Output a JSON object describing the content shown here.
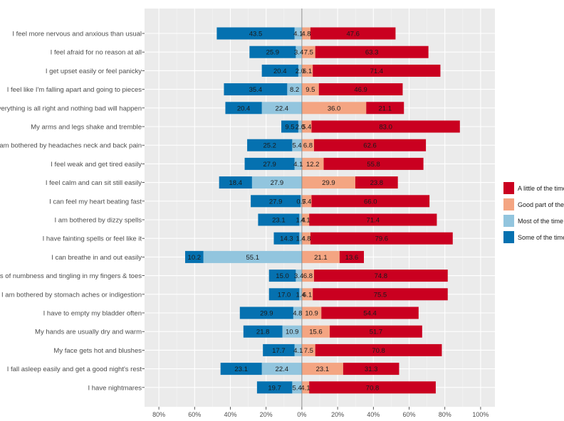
{
  "chart_data": {
    "type": "bar",
    "orientation": "horizontal",
    "stacking": "diverging",
    "title": "",
    "xlabel": "",
    "ylabel": "",
    "xlim": [
      -88,
      108
    ],
    "x_ticks": [
      -80,
      -60,
      -40,
      -20,
      0,
      20,
      40,
      60,
      80,
      100
    ],
    "x_tick_labels": [
      "80%",
      "60%",
      "40%",
      "20%",
      "0%",
      "20%",
      "40%",
      "60%",
      "80%",
      "100%"
    ],
    "grid": true,
    "legend_position": "right",
    "legend": [
      "A little of the time",
      "Good part of the time",
      "Most of the time",
      "Some of the time"
    ],
    "colors": {
      "A little of the time": "#ca0020",
      "Good part of the time": "#f4a582",
      "Most of the time": "#92c5de",
      "Some of the time": "#0571b0"
    },
    "categories": [
      "I feel more nervous and anxious than usual",
      "I feel afraid for no reason at all",
      "I get upset easily or feel panicky",
      "I feel like I'm falling apart and going to pieces",
      "I feel that everything is all right and nothing bad will happen",
      "My arms and legs shake and tremble",
      "I am bothered by headaches neck and back pain",
      "I feel weak and get tired easily",
      "I feel calm and can sit still easily",
      "I can feel my heart beating fast",
      "I am bothered by dizzy spells",
      "I have fainting spells or feel like it",
      "I can breathe in and out easily",
      "I get feelings of numbness and tingling in my fingers & toes",
      "I am bothered by stomach aches or indigestion",
      "I have to empty my bladder often",
      "My hands are usually dry and warm",
      "My face gets hot and blushes",
      "I fall asleep easily and get a good night's rest",
      "I have nightmares"
    ],
    "series": [
      {
        "name": "A little of the time",
        "side": "positive",
        "order": 2,
        "values": [
          47.6,
          63.3,
          71.4,
          46.9,
          21.1,
          83.0,
          62.6,
          55.8,
          23.8,
          66.0,
          71.4,
          79.6,
          13.6,
          74.8,
          75.5,
          54.4,
          51.7,
          70.8,
          31.3,
          70.8
        ]
      },
      {
        "name": "Good part of the time",
        "side": "positive",
        "order": 1,
        "values": [
          4.8,
          7.5,
          6.1,
          9.5,
          36.0,
          5.4,
          6.8,
          12.2,
          29.9,
          5.4,
          4.1,
          4.8,
          21.1,
          6.8,
          6.1,
          10.9,
          15.6,
          7.5,
          23.1,
          4.1
        ]
      },
      {
        "name": "Most of the time",
        "side": "negative",
        "order": 1,
        "values": [
          4.1,
          3.4,
          2.0,
          8.2,
          22.4,
          2.0,
          5.4,
          4.1,
          27.9,
          0.7,
          1.4,
          1.4,
          55.1,
          3.4,
          1.4,
          4.8,
          10.9,
          4.1,
          22.4,
          5.4
        ]
      },
      {
        "name": "Some of the time",
        "side": "negative",
        "order": 2,
        "values": [
          43.5,
          25.9,
          20.4,
          35.4,
          20.4,
          9.5,
          25.2,
          27.9,
          18.4,
          27.9,
          23.1,
          14.3,
          10.2,
          15.0,
          17.0,
          29.9,
          21.8,
          17.7,
          23.1,
          19.7
        ]
      }
    ],
    "data_labels": [
      [
        "43.5",
        "4.1",
        "4.8",
        "47.6"
      ],
      [
        "25.9",
        "3.4",
        "7.5",
        "63.3"
      ],
      [
        "20.4",
        "2.0",
        "6.1",
        "71.4"
      ],
      [
        "35.4",
        "8.2",
        "9.5",
        "46.9"
      ],
      [
        "20.4",
        "22.4",
        "36.0",
        "21.1"
      ],
      [
        "9.5",
        "2.0",
        "5.4",
        "83.0"
      ],
      [
        "25.2",
        "5.4",
        "6.8",
        "62.6"
      ],
      [
        "27.9",
        "4.1",
        "12.2",
        "55.8"
      ],
      [
        "18.4",
        "27.9",
        "29.9",
        "23.8"
      ],
      [
        "27.9",
        "0.7",
        "5.4",
        "66.0"
      ],
      [
        "23.1",
        "1.4",
        "4.1",
        "71.4"
      ],
      [
        "14.3",
        "1.4",
        "4.8",
        "79.6"
      ],
      [
        "10.2",
        "55.1",
        "21.1",
        "13.6"
      ],
      [
        "15.0",
        "3.4",
        "6.8",
        "74.8"
      ],
      [
        "17.0",
        "1.4",
        "6.1",
        "75.5"
      ],
      [
        "29.9",
        "4.8",
        "10.9",
        "54.4"
      ],
      [
        "21.8",
        "10.9",
        "15.6",
        "51.7"
      ],
      [
        "17.7",
        "4.1",
        "7.5",
        "70.8"
      ],
      [
        "23.1",
        "22.4",
        "23.1",
        "31.3"
      ],
      [
        "19.7",
        "5.4",
        "4.1",
        "70.8"
      ]
    ]
  }
}
